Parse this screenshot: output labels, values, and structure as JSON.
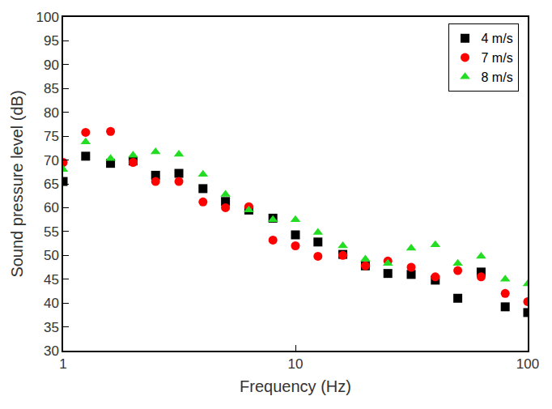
{
  "chart_data": {
    "type": "scatter",
    "x_label": "Frequency (Hz)",
    "y_label": "Sound pressure level (dB)",
    "x": [
      1,
      1.25,
      1.6,
      2,
      2.5,
      3.15,
      4,
      5,
      6.3,
      8,
      10,
      12.5,
      16,
      20,
      25,
      31.5,
      40,
      50,
      63,
      80,
      100
    ],
    "series": [
      {
        "name": "4 m/s",
        "color": "#000000",
        "marker": "square",
        "values": [
          65.5,
          70.8,
          69.3,
          69.8,
          66.8,
          67.2,
          64,
          61.3,
          59.5,
          57.8,
          54.3,
          52.8,
          50.2,
          47.8,
          46.2,
          46,
          44.8,
          41,
          46.5,
          39.2,
          38
        ]
      },
      {
        "name": "7 m/s",
        "color": "#ff0000",
        "marker": "circle",
        "values": [
          69.5,
          75.8,
          76,
          69.5,
          65.5,
          65.5,
          61.2,
          60,
          60.2,
          53.2,
          52,
          49.8,
          50,
          47.8,
          48.8,
          47.5,
          45.5,
          46.8,
          45.5,
          42,
          40.3
        ]
      },
      {
        "name": "8 m/s",
        "color": "#22dd22",
        "marker": "triangle-up",
        "values": [
          68,
          73.8,
          70.3,
          71,
          71.7,
          71.2,
          67,
          62.8,
          59.5,
          57.5,
          57.5,
          54.8,
          52,
          49.2,
          48.3,
          51.5,
          52.2,
          48.3,
          49.8,
          45,
          44
        ]
      }
    ],
    "xlim": [
      1,
      100
    ],
    "xticks": [
      1,
      10,
      100
    ],
    "ylim": [
      30,
      100
    ],
    "yticks": [
      30,
      35,
      40,
      45,
      50,
      55,
      60,
      65,
      70,
      75,
      80,
      85,
      90,
      95,
      100
    ],
    "log": "x",
    "grid": false,
    "legend": "upper right"
  }
}
